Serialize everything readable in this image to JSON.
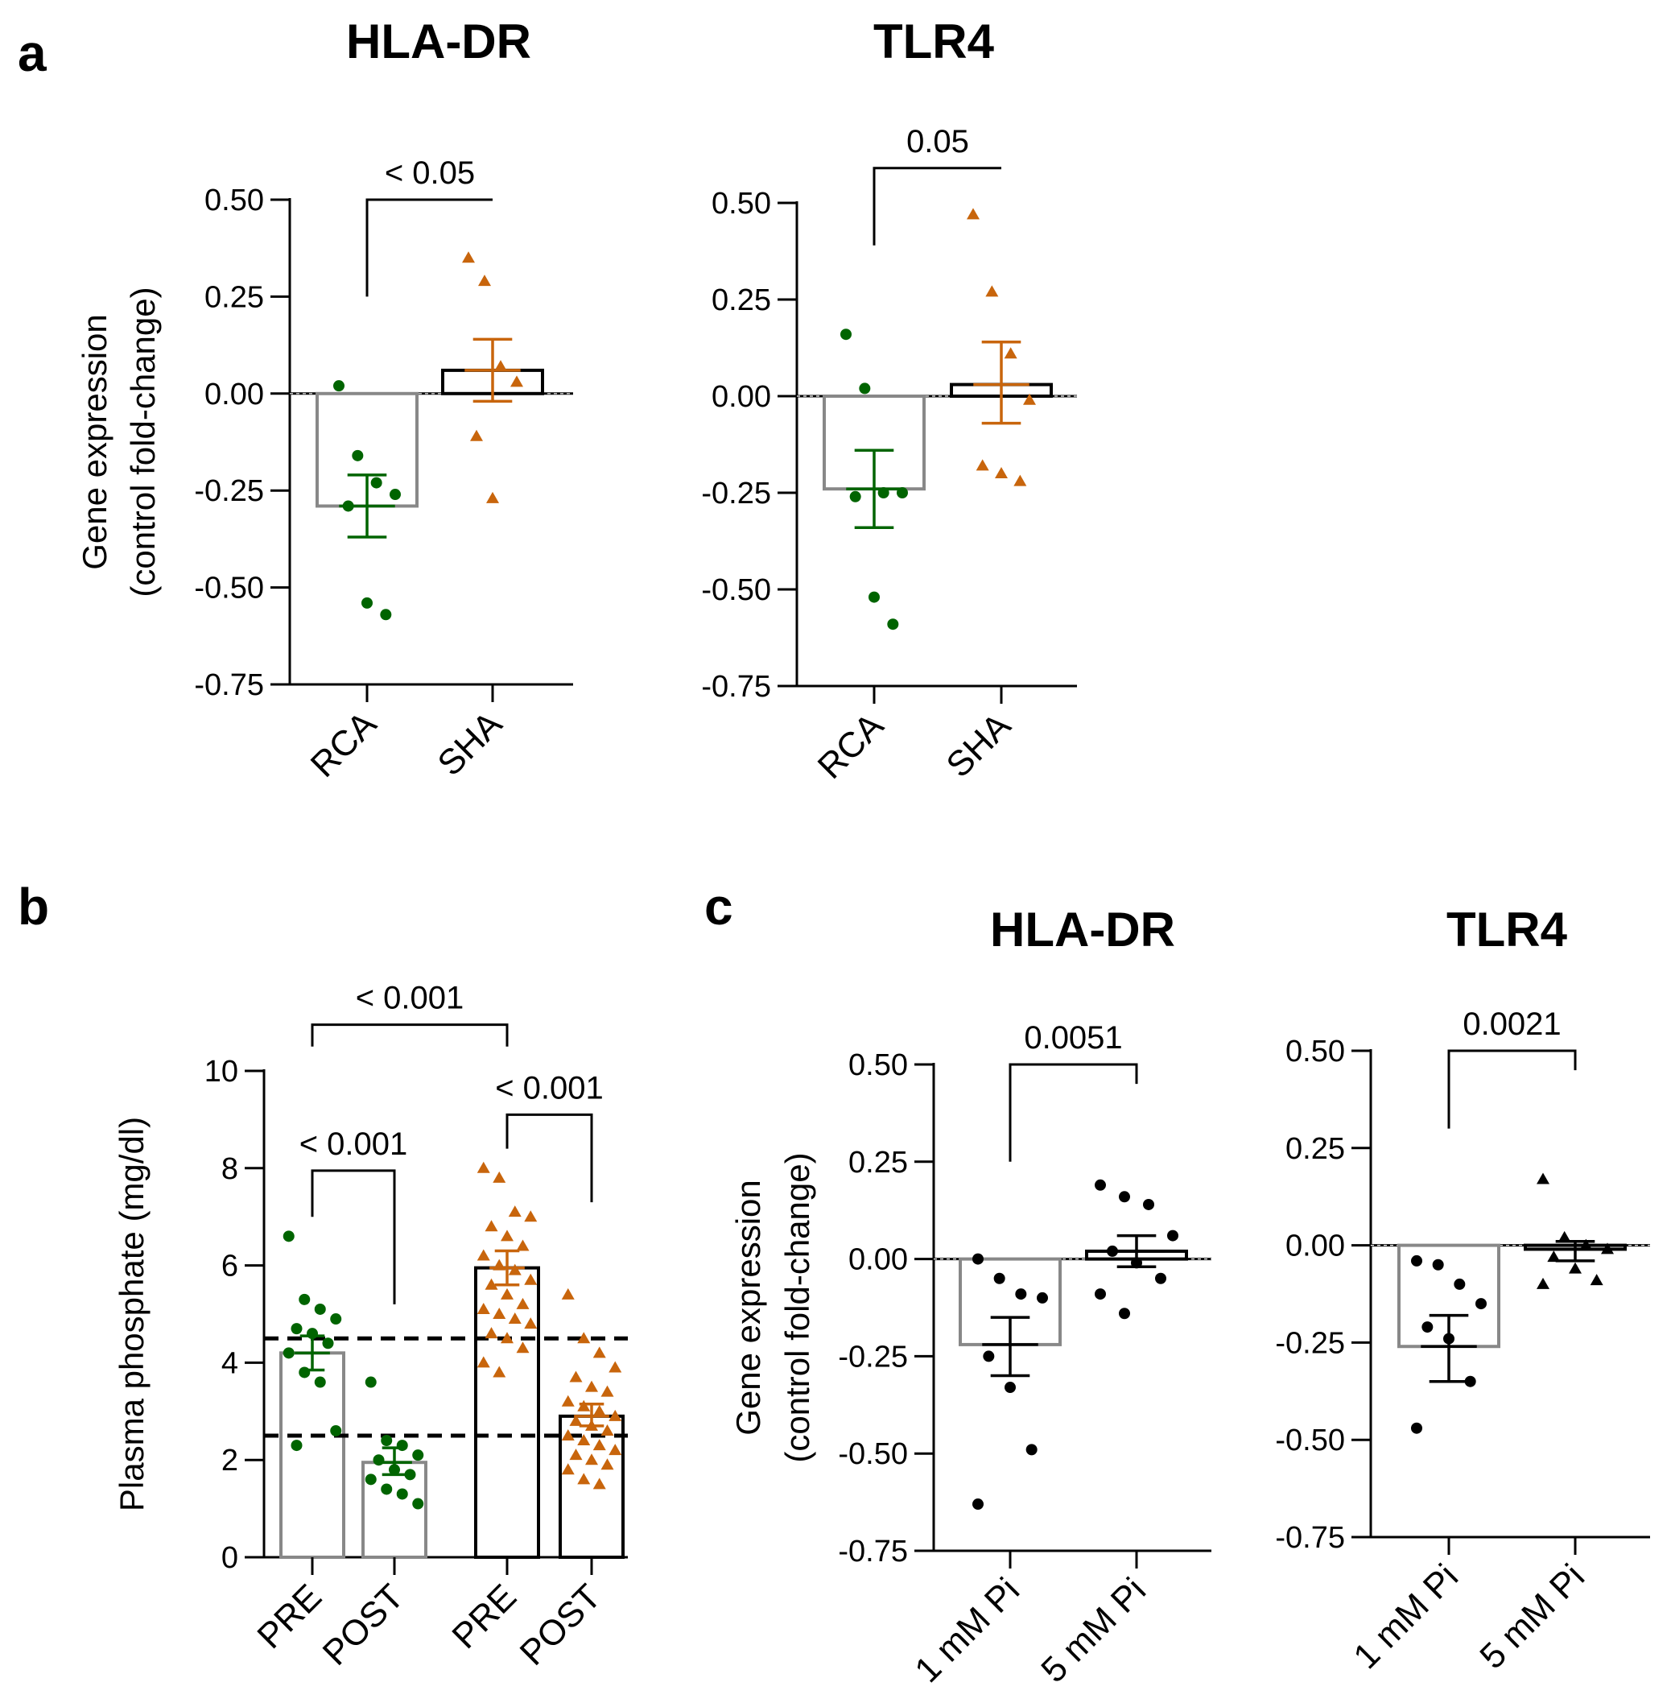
{
  "panel_labels": [
    "a",
    "b",
    "c"
  ],
  "colors": {
    "rca": "#006400",
    "sha": "#c8650c",
    "black": "#000000",
    "gray_bar": "#888888"
  },
  "chart_data": [
    {
      "id": "a1",
      "panel": "a",
      "type": "bar",
      "title": "HLA-DR",
      "ylabel": "Gene expression",
      "ylabel2": "(control fold-change)",
      "ylim": [
        -0.75,
        0.5
      ],
      "yticks": [
        0.5,
        0.25,
        0,
        -0.25,
        -0.5,
        -0.75
      ],
      "ytick_labels": [
        "0.50",
        "0.25",
        "0.00",
        "-0.25",
        "-0.50",
        "-0.75"
      ],
      "zero_line": true,
      "categories": [
        "RCA",
        "SHA"
      ],
      "series": [
        {
          "name": "RCA",
          "mean": -0.29,
          "sem_low": -0.37,
          "sem_high": -0.21,
          "points": [
            0.02,
            -0.16,
            -0.23,
            -0.26,
            -0.29,
            -0.54,
            -0.57
          ],
          "color": "#006400",
          "marker": "circle",
          "bar_color": "#888888"
        },
        {
          "name": "SHA",
          "mean": 0.06,
          "sem_low": -0.02,
          "sem_high": 0.14,
          "points": [
            0.35,
            0.29,
            0.07,
            0.03,
            -0.11,
            -0.27
          ],
          "color": "#c8650c",
          "marker": "triangle",
          "bar_color": "#000000"
        }
      ],
      "comparisons": [
        {
          "from": 0,
          "to": 1,
          "label": "< 0.05",
          "y": 0.5,
          "left_end": 0.25,
          "right_end": 0.5
        }
      ]
    },
    {
      "id": "a2",
      "panel": "a",
      "type": "bar",
      "title": "TLR4",
      "ylim": [
        -0.75,
        0.5
      ],
      "yticks": [
        0.5,
        0.25,
        0,
        -0.25,
        -0.5,
        -0.75
      ],
      "ytick_labels": [
        "0.50",
        "0.25",
        "0.00",
        "-0.25",
        "-0.50",
        "-0.75"
      ],
      "zero_line": true,
      "categories": [
        "RCA",
        "SHA"
      ],
      "series": [
        {
          "name": "RCA",
          "mean": -0.24,
          "sem_low": -0.34,
          "sem_high": -0.14,
          "points": [
            0.16,
            0.02,
            -0.25,
            -0.25,
            -0.26,
            -0.52,
            -0.59
          ],
          "color": "#006400",
          "marker": "circle",
          "bar_color": "#888888"
        },
        {
          "name": "SHA",
          "mean": 0.03,
          "sem_low": -0.07,
          "sem_high": 0.14,
          "points": [
            0.47,
            0.27,
            0.11,
            -0.01,
            -0.18,
            -0.2,
            -0.22
          ],
          "color": "#c8650c",
          "marker": "triangle",
          "bar_color": "#000000"
        }
      ],
      "comparisons": [
        {
          "from": 0,
          "to": 1,
          "label": "0.05",
          "y": 0.59,
          "left_end": 0.39,
          "right_end": 0.59
        }
      ]
    },
    {
      "id": "b",
      "panel": "b",
      "type": "bar",
      "ylabel": "Plasma phosphate (mg/dl)",
      "ylim": [
        0,
        10
      ],
      "yticks": [
        10,
        8,
        6,
        4,
        2,
        0
      ],
      "ytick_labels": [
        "10",
        "8",
        "6",
        "4",
        "2",
        "0"
      ],
      "reference_lines": [
        4.5,
        2.5
      ],
      "categories": [
        "PRE",
        "POST",
        "PRE",
        "POST"
      ],
      "series": [
        {
          "name": "PRE",
          "mean": 4.2,
          "sem_low": 3.85,
          "sem_high": 4.55,
          "points": [
            6.6,
            5.3,
            5.1,
            4.9,
            4.7,
            4.6,
            4.4,
            4.2,
            3.8,
            3.6,
            2.6,
            2.3
          ],
          "color": "#006400",
          "marker": "circle",
          "bar_color": "#888888"
        },
        {
          "name": "POST",
          "mean": 1.95,
          "sem_low": 1.7,
          "sem_high": 2.25,
          "points": [
            3.6,
            2.4,
            2.3,
            2.1,
            2.0,
            1.8,
            1.7,
            1.6,
            1.4,
            1.3,
            1.1
          ],
          "color": "#006400",
          "marker": "circle",
          "bar_color": "#888888"
        },
        {
          "name": "PRE",
          "mean": 5.95,
          "sem_low": 5.6,
          "sem_high": 6.3,
          "points": [
            8.0,
            7.8,
            7.1,
            7.0,
            6.8,
            6.6,
            6.4,
            6.2,
            6.0,
            5.9,
            5.7,
            5.6,
            5.4,
            5.2,
            5.1,
            5.0,
            4.9,
            4.8,
            4.6,
            4.5,
            4.3,
            4.0,
            3.8
          ],
          "color": "#c8650c",
          "marker": "triangle",
          "bar_color": "#000000"
        },
        {
          "name": "POST",
          "mean": 2.9,
          "sem_low": 2.7,
          "sem_high": 3.15,
          "points": [
            5.4,
            4.5,
            4.2,
            3.9,
            3.7,
            3.5,
            3.4,
            3.2,
            3.1,
            3.0,
            2.9,
            2.8,
            2.7,
            2.6,
            2.5,
            2.4,
            2.3,
            2.2,
            2.1,
            2.0,
            1.9,
            1.8,
            1.6,
            1.5
          ],
          "color": "#c8650c",
          "marker": "triangle",
          "bar_color": "#000000"
        }
      ],
      "comparisons": [
        {
          "from": 0,
          "to": 2,
          "label": "< 0.001",
          "y": 10.95,
          "left_end": 10.5,
          "right_end": 10.5
        },
        {
          "from": 0,
          "to": 1,
          "label": "< 0.001",
          "y": 7.95,
          "left_end": 7.0,
          "right_end": 5.2
        },
        {
          "from": 2,
          "to": 3,
          "label": "< 0.001",
          "y": 9.1,
          "left_end": 8.4,
          "right_end": 7.3
        }
      ]
    },
    {
      "id": "c1",
      "panel": "c",
      "type": "bar",
      "title": "HLA-DR",
      "ylabel": "Gene expression",
      "ylabel2": "(control fold-change)",
      "ylim": [
        -0.75,
        0.5
      ],
      "yticks": [
        0.5,
        0.25,
        0,
        -0.25,
        -0.5,
        -0.75
      ],
      "ytick_labels": [
        "0.50",
        "0.25",
        "0.00",
        "-0.25",
        "-0.50",
        "-0.75"
      ],
      "zero_line": true,
      "categories": [
        "1 mM Pi",
        "5 mM Pi"
      ],
      "series": [
        {
          "name": "1 mM Pi",
          "mean": -0.22,
          "sem_low": -0.3,
          "sem_high": -0.15,
          "points": [
            0.0,
            -0.05,
            -0.09,
            -0.1,
            -0.25,
            -0.33,
            -0.49,
            -0.63
          ],
          "color": "#000000",
          "marker": "circle",
          "bar_color": "#888888"
        },
        {
          "name": "5 mM Pi",
          "mean": 0.02,
          "sem_low": -0.02,
          "sem_high": 0.06,
          "points": [
            0.19,
            0.16,
            0.14,
            0.06,
            0.02,
            -0.01,
            -0.05,
            -0.09,
            -0.14
          ],
          "color": "#000000",
          "marker": "circle",
          "bar_color": "#000000"
        }
      ],
      "comparisons": [
        {
          "from": 0,
          "to": 1,
          "label": "0.0051",
          "y": 0.5,
          "left_end": 0.25,
          "right_end": 0.45
        }
      ]
    },
    {
      "id": "c2",
      "panel": "c",
      "type": "bar",
      "title": "TLR4",
      "ylim": [
        -0.75,
        0.5
      ],
      "yticks": [
        0.5,
        0.25,
        0,
        -0.25,
        -0.5,
        -0.75
      ],
      "ytick_labels": [
        "0.50",
        "0.25",
        "0.00",
        "-0.25",
        "-0.50",
        "-0.75"
      ],
      "zero_line": true,
      "categories": [
        "1 mM Pi",
        "5 mM Pi"
      ],
      "series": [
        {
          "name": "1 mM Pi",
          "mean": -0.26,
          "sem_low": -0.35,
          "sem_high": -0.18,
          "points": [
            -0.04,
            -0.05,
            -0.1,
            -0.15,
            -0.21,
            -0.24,
            -0.35,
            -0.47
          ],
          "color": "#000000",
          "marker": "circle",
          "bar_color": "#888888"
        },
        {
          "name": "5 mM Pi",
          "mean": -0.01,
          "sem_low": -0.04,
          "sem_high": 0.01,
          "points": [
            0.17,
            0.02,
            0.0,
            -0.01,
            -0.03,
            -0.06,
            -0.09,
            -0.1
          ],
          "color": "#000000",
          "marker": "triangle",
          "bar_color": "#000000"
        }
      ],
      "comparisons": [
        {
          "from": 0,
          "to": 1,
          "label": "0.0021",
          "y": 0.5,
          "left_end": 0.3,
          "right_end": 0.45
        }
      ]
    }
  ]
}
